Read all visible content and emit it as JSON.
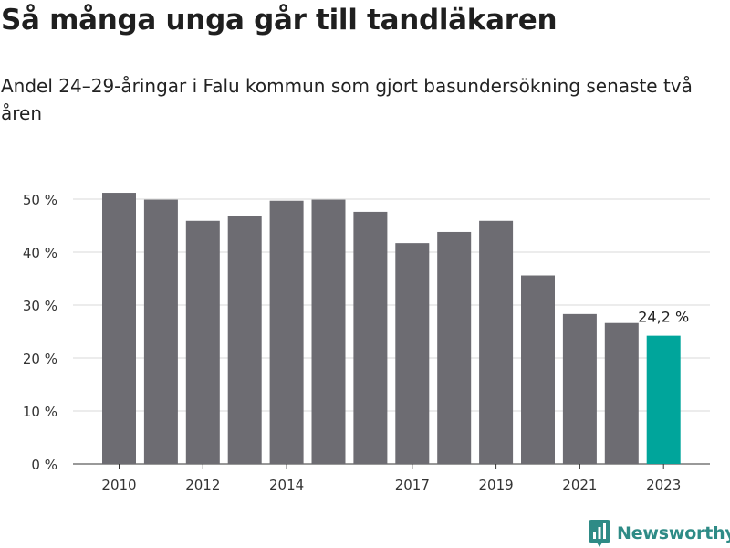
{
  "title": "Så många unga går till tandläkaren",
  "subtitle": "Andel 24–29-åringar i Falu kommun som gjort basundersökning senaste två åren",
  "brand": "Newsworthy",
  "colors": {
    "bar": "#6d6c72",
    "highlight": "#00a59b",
    "grid": "#d9d9d9",
    "brand": "#2e8b86"
  },
  "chart_data": {
    "type": "bar",
    "categories": [
      "2010",
      "2011",
      "2012",
      "2013",
      "2014",
      "2015",
      "2016",
      "2017",
      "2018",
      "2019",
      "2020",
      "2021",
      "2022",
      "2023"
    ],
    "values": [
      51.2,
      49.9,
      45.9,
      46.8,
      49.7,
      49.9,
      47.6,
      41.7,
      43.8,
      45.9,
      35.6,
      28.3,
      26.6,
      24.2
    ],
    "x_tick_labels": [
      "2010",
      "2012",
      "2014",
      "2017",
      "2019",
      "2021",
      "2023"
    ],
    "y_ticks": [
      0,
      10,
      20,
      30,
      40,
      50
    ],
    "y_tick_labels": [
      "0 %",
      "10 %",
      "20 %",
      "30 %",
      "40 %",
      "50 %"
    ],
    "ylim": [
      0,
      50
    ],
    "highlight_index": 13,
    "data_labels": {
      "13": "24,2 %"
    },
    "grid": true,
    "legend": "none"
  }
}
